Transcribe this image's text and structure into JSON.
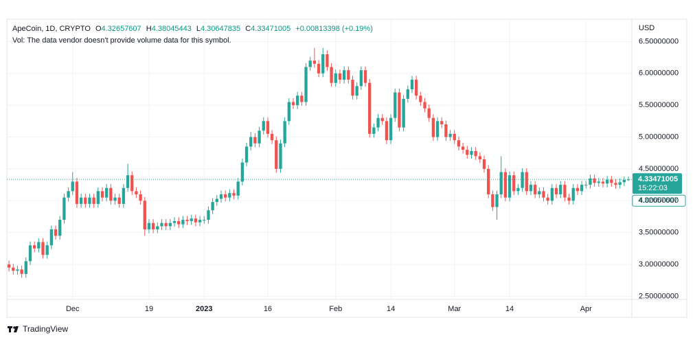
{
  "chart_data": {
    "type": "candlestick",
    "symbol": "ApeCoin, 1D, CRYPTO",
    "ohlc_labels": [
      "O",
      "H",
      "L",
      "C"
    ],
    "change": "+0.00813398 (+0.19%)",
    "volume_note": "Vol: The data vendor doesn't provide volume data for this symbol.",
    "currency": "USD",
    "countdown": "15:22:03",
    "brand": "TradingView",
    "up_color": "#26a69a",
    "down_color": "#ef5350",
    "grid": true,
    "ylim": [
      2.45,
      6.85
    ],
    "yticks": [
      {
        "value": 2.5,
        "label": "2.50000000"
      },
      {
        "value": 3,
        "label": "3.00000000"
      },
      {
        "value": 3.5,
        "label": "3.50000000"
      },
      {
        "value": 4,
        "label": "4.00000000"
      },
      {
        "value": 4.5,
        "label": "4.50000000"
      },
      {
        "value": 5,
        "label": "5.00000000"
      },
      {
        "value": 5.5,
        "label": "5.50000000"
      },
      {
        "value": 6,
        "label": "6.00000000"
      },
      {
        "value": 6.5,
        "label": "6.50000000"
      }
    ],
    "xlim": [
      -0.5,
      146.8
    ],
    "xticks": [
      {
        "value": 15,
        "label": "Dec"
      },
      {
        "value": 33,
        "label": "19"
      },
      {
        "value": 46,
        "label": "2023"
      },
      {
        "value": 61,
        "label": "16"
      },
      {
        "value": 77,
        "label": "Feb"
      },
      {
        "value": 90,
        "label": "14"
      },
      {
        "value": 105,
        "label": "Mar"
      },
      {
        "value": 118,
        "label": "14"
      },
      {
        "value": 136,
        "label": "Apr"
      }
    ],
    "open": [
      3.0,
      2.95,
      2.9,
      2.92,
      2.85,
      3.05,
      3.3,
      3.25,
      3.35,
      3.15,
      3.3,
      3.55,
      3.45,
      3.7,
      4.05,
      4.15,
      4.3,
      3.95,
      4.05,
      3.95,
      4.05,
      3.95,
      4.15,
      4.05,
      4.2,
      4.0,
      4.05,
      3.95,
      4.2,
      4.4,
      4.15,
      4.1,
      4.0,
      3.55,
      3.65,
      3.55,
      3.6,
      3.65,
      3.6,
      3.65,
      3.68,
      3.63,
      3.7,
      3.68,
      3.72,
      3.66,
      3.7,
      3.7,
      3.85,
      3.98,
      4.03,
      4.1,
      4.05,
      4.12,
      4.08,
      4.3,
      4.6,
      4.85,
      5.0,
      4.9,
      5.1,
      5.25,
      5.05,
      4.95,
      4.5,
      4.9,
      5.25,
      5.55,
      5.5,
      5.65,
      5.55,
      6.1,
      6.2,
      6.15,
      6.0,
      6.3,
      6.1,
      5.85,
      6.0,
      5.9,
      6.05,
      5.9,
      5.65,
      5.8,
      6.05,
      5.85,
      5.05,
      5.15,
      5.3,
      5.25,
      4.95,
      5.3,
      5.7,
      5.15,
      5.6,
      5.75,
      5.9,
      5.65,
      5.55,
      5.45,
      5.3,
      5.0,
      5.25,
      5.2,
      5.0,
      5.05,
      4.95,
      4.85,
      4.8,
      4.72,
      4.78,
      4.7,
      4.65,
      4.5,
      4.1,
      3.9,
      4.1,
      4.45,
      4.05,
      4.4,
      4.15,
      4.2,
      4.45,
      4.15,
      4.25,
      4.1,
      4.15,
      4.05,
      4.0,
      4.2,
      4.1,
      4.25,
      4.05,
      4.0,
      4.2,
      4.15,
      4.25,
      4.25,
      4.35,
      4.28,
      4.3,
      4.27,
      4.33,
      4.28,
      4.25,
      4.29,
      4.32657607
    ],
    "high": [
      3.06,
      3.01,
      2.98,
      2.98,
      3.11,
      3.36,
      3.36,
      3.41,
      3.41,
      3.36,
      3.61,
      3.61,
      3.76,
      4.11,
      4.21,
      4.45,
      4.36,
      4.11,
      4.11,
      4.11,
      4.11,
      4.21,
      4.21,
      4.26,
      4.26,
      4.11,
      4.11,
      4.26,
      4.58,
      4.46,
      4.21,
      4.16,
      4.06,
      3.71,
      3.71,
      3.66,
      3.71,
      3.71,
      3.71,
      3.74,
      3.74,
      3.76,
      3.76,
      3.78,
      3.78,
      3.76,
      3.76,
      3.91,
      4.04,
      4.09,
      4.16,
      4.16,
      4.18,
      4.18,
      4.36,
      4.66,
      4.91,
      5.08,
      5.06,
      5.16,
      5.31,
      5.31,
      5.11,
      5.01,
      4.96,
      5.31,
      5.61,
      5.61,
      5.71,
      5.71,
      6.16,
      6.26,
      6.4,
      6.21,
      6.4,
      6.36,
      6.16,
      6.06,
      6.06,
      6.11,
      6.11,
      5.96,
      5.86,
      6.11,
      6.11,
      5.91,
      5.21,
      5.36,
      5.36,
      5.31,
      5.36,
      5.76,
      5.76,
      5.66,
      5.81,
      5.96,
      5.96,
      5.71,
      5.61,
      5.51,
      5.36,
      5.31,
      5.31,
      5.26,
      5.11,
      5.11,
      5.01,
      4.91,
      4.86,
      4.84,
      4.84,
      4.76,
      4.71,
      4.56,
      4.16,
      4.16,
      4.7,
      4.51,
      4.46,
      4.46,
      4.26,
      4.51,
      4.51,
      4.31,
      4.31,
      4.21,
      4.21,
      4.11,
      4.26,
      4.26,
      4.31,
      4.31,
      4.11,
      4.26,
      4.26,
      4.31,
      4.31,
      4.41,
      4.41,
      4.36,
      4.36,
      4.39,
      4.39,
      4.34,
      4.35,
      4.38,
      4.38045443
    ],
    "low": [
      2.89,
      2.84,
      2.84,
      2.79,
      2.79,
      2.99,
      3.19,
      3.19,
      3.09,
      3.09,
      3.24,
      3.39,
      3.39,
      3.64,
      3.99,
      4.09,
      3.89,
      3.89,
      3.89,
      3.89,
      3.89,
      3.89,
      3.99,
      3.99,
      3.94,
      3.94,
      3.89,
      3.89,
      4.14,
      4.09,
      4.04,
      3.94,
      3.45,
      3.49,
      3.49,
      3.49,
      3.54,
      3.54,
      3.54,
      3.59,
      3.57,
      3.57,
      3.62,
      3.62,
      3.6,
      3.6,
      3.64,
      3.64,
      3.79,
      3.92,
      3.97,
      3.99,
      3.99,
      4.02,
      4.02,
      4.24,
      4.54,
      4.79,
      4.84,
      4.84,
      5.04,
      4.99,
      4.89,
      4.44,
      4.44,
      4.84,
      5.19,
      5.44,
      5.44,
      5.49,
      5.49,
      6.04,
      6.09,
      5.94,
      5.94,
      6.04,
      5.79,
      5.79,
      5.84,
      5.84,
      5.84,
      5.59,
      5.59,
      5.74,
      5.79,
      4.99,
      4.99,
      5.09,
      5.19,
      4.89,
      4.89,
      5.24,
      5.09,
      5.09,
      5.54,
      5.69,
      5.59,
      5.49,
      5.39,
      5.24,
      4.94,
      4.94,
      5.14,
      4.94,
      4.94,
      4.89,
      4.79,
      4.74,
      4.66,
      4.66,
      4.64,
      4.59,
      4.44,
      4.04,
      3.84,
      3.7,
      4.04,
      3.99,
      3.99,
      4.09,
      4.09,
      4.14,
      4.09,
      4.09,
      4.04,
      4.04,
      3.99,
      3.94,
      3.94,
      4.04,
      4.04,
      3.99,
      3.94,
      3.94,
      4.09,
      4.09,
      4.19,
      4.19,
      4.22,
      4.22,
      4.21,
      4.21,
      4.22,
      4.19,
      4.19,
      4.23,
      4.30647835
    ],
    "close": [
      2.95,
      2.9,
      2.92,
      2.85,
      3.05,
      3.3,
      3.25,
      3.35,
      3.15,
      3.3,
      3.55,
      3.45,
      3.7,
      4.05,
      4.15,
      4.3,
      3.95,
      4.05,
      3.95,
      4.05,
      3.95,
      4.15,
      4.05,
      4.2,
      4.0,
      4.05,
      3.95,
      4.2,
      4.4,
      4.15,
      4.1,
      4.0,
      3.55,
      3.65,
      3.55,
      3.6,
      3.65,
      3.6,
      3.65,
      3.68,
      3.63,
      3.7,
      3.68,
      3.72,
      3.66,
      3.7,
      3.7,
      3.85,
      3.98,
      4.03,
      4.1,
      4.05,
      4.12,
      4.08,
      4.3,
      4.6,
      4.85,
      5.0,
      4.9,
      5.1,
      5.25,
      5.05,
      4.95,
      4.5,
      4.9,
      5.25,
      5.55,
      5.5,
      5.65,
      5.55,
      6.1,
      6.2,
      6.15,
      6.0,
      6.3,
      6.1,
      5.85,
      6.0,
      5.9,
      6.05,
      5.9,
      5.65,
      5.8,
      6.05,
      5.85,
      5.05,
      5.15,
      5.3,
      5.25,
      4.95,
      5.3,
      5.7,
      5.15,
      5.6,
      5.75,
      5.9,
      5.65,
      5.55,
      5.45,
      5.3,
      5.0,
      5.25,
      5.2,
      5.0,
      5.05,
      4.95,
      4.85,
      4.8,
      4.72,
      4.78,
      4.7,
      4.65,
      4.5,
      4.1,
      3.9,
      4.1,
      4.45,
      4.05,
      4.4,
      4.15,
      4.2,
      4.45,
      4.15,
      4.25,
      4.1,
      4.15,
      4.05,
      4.0,
      4.2,
      4.1,
      4.25,
      4.05,
      4.0,
      4.2,
      4.15,
      4.25,
      4.25,
      4.35,
      4.28,
      4.3,
      4.27,
      4.33,
      4.28,
      4.25,
      4.29,
      4.32657607,
      4.33471005
    ]
  }
}
